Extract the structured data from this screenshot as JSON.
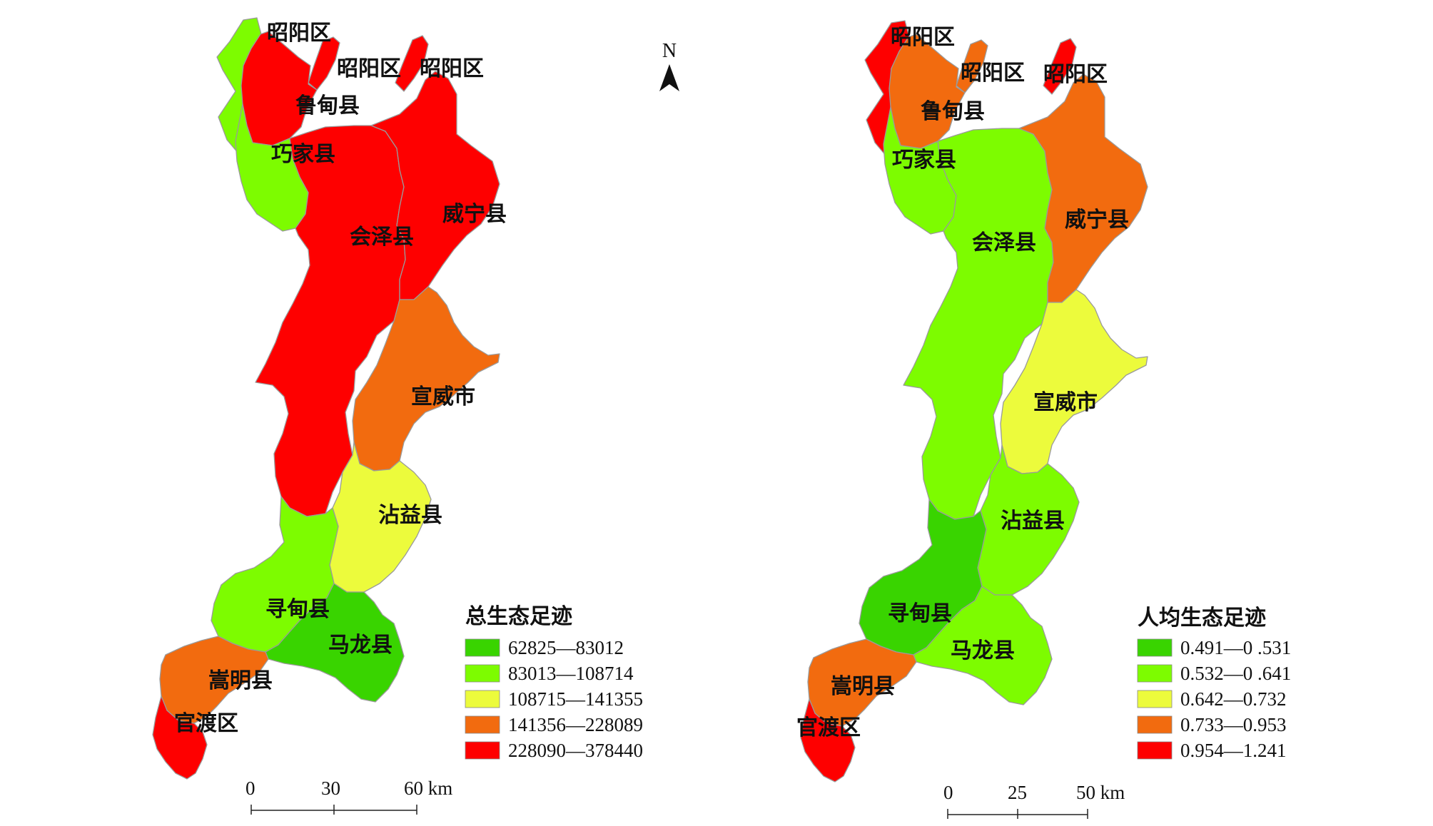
{
  "north_arrow": {
    "label": "N"
  },
  "maps": [
    {
      "id": "total",
      "legend": {
        "title": "总生态足迹",
        "classes": [
          {
            "label": "62825—83012",
            "color": "#39d400"
          },
          {
            "label": "83013—108714",
            "color": "#7dfc00"
          },
          {
            "label": "108715—141355",
            "color": "#ecfb3c"
          },
          {
            "label": "141356—228089",
            "color": "#f26b0f"
          },
          {
            "label": "228090—378440",
            "color": "#fe0000"
          }
        ]
      },
      "scale_bar": {
        "ticks": [
          "0",
          "30",
          "60 km"
        ]
      },
      "regions": [
        {
          "name": "昭阳区",
          "class": 1
        },
        {
          "name": "昭阳区",
          "class": 4
        },
        {
          "name": "昭阳区",
          "class": 4
        },
        {
          "name": "鲁甸县",
          "class": 4
        },
        {
          "name": "巧家县",
          "class": 1
        },
        {
          "name": "会泽县",
          "class": 4
        },
        {
          "name": "威宁县",
          "class": 4
        },
        {
          "name": "宣威市",
          "class": 3
        },
        {
          "name": "沾益县",
          "class": 2
        },
        {
          "name": "寻甸县",
          "class": 1
        },
        {
          "name": "马龙县",
          "class": 0
        },
        {
          "name": "嵩明县",
          "class": 3
        },
        {
          "name": "官渡区",
          "class": 4
        }
      ]
    },
    {
      "id": "per_capita",
      "legend": {
        "title": "人均生态足迹",
        "classes": [
          {
            "label": "0.491—0 .531",
            "color": "#39d400"
          },
          {
            "label": "0.532—0 .641",
            "color": "#7dfc00"
          },
          {
            "label": "0.642—0.732",
            "color": "#ecfb3c"
          },
          {
            "label": "0.733—0.953",
            "color": "#f26b0f"
          },
          {
            "label": "0.954—1.241",
            "color": "#fe0000"
          }
        ]
      },
      "scale_bar": {
        "ticks": [
          "0",
          "25",
          "50 km"
        ]
      },
      "regions": [
        {
          "name": "昭阳区",
          "class": 4
        },
        {
          "name": "昭阳区",
          "class": 3
        },
        {
          "name": "昭阳区",
          "class": 4
        },
        {
          "name": "鲁甸县",
          "class": 3
        },
        {
          "name": "巧家县",
          "class": 1
        },
        {
          "name": "会泽县",
          "class": 1
        },
        {
          "name": "威宁县",
          "class": 3
        },
        {
          "name": "宣威市",
          "class": 2
        },
        {
          "name": "沾益县",
          "class": 1
        },
        {
          "name": "寻甸县",
          "class": 0
        },
        {
          "name": "马龙县",
          "class": 1
        },
        {
          "name": "嵩明县",
          "class": 3
        },
        {
          "name": "官渡区",
          "class": 4
        }
      ]
    }
  ]
}
